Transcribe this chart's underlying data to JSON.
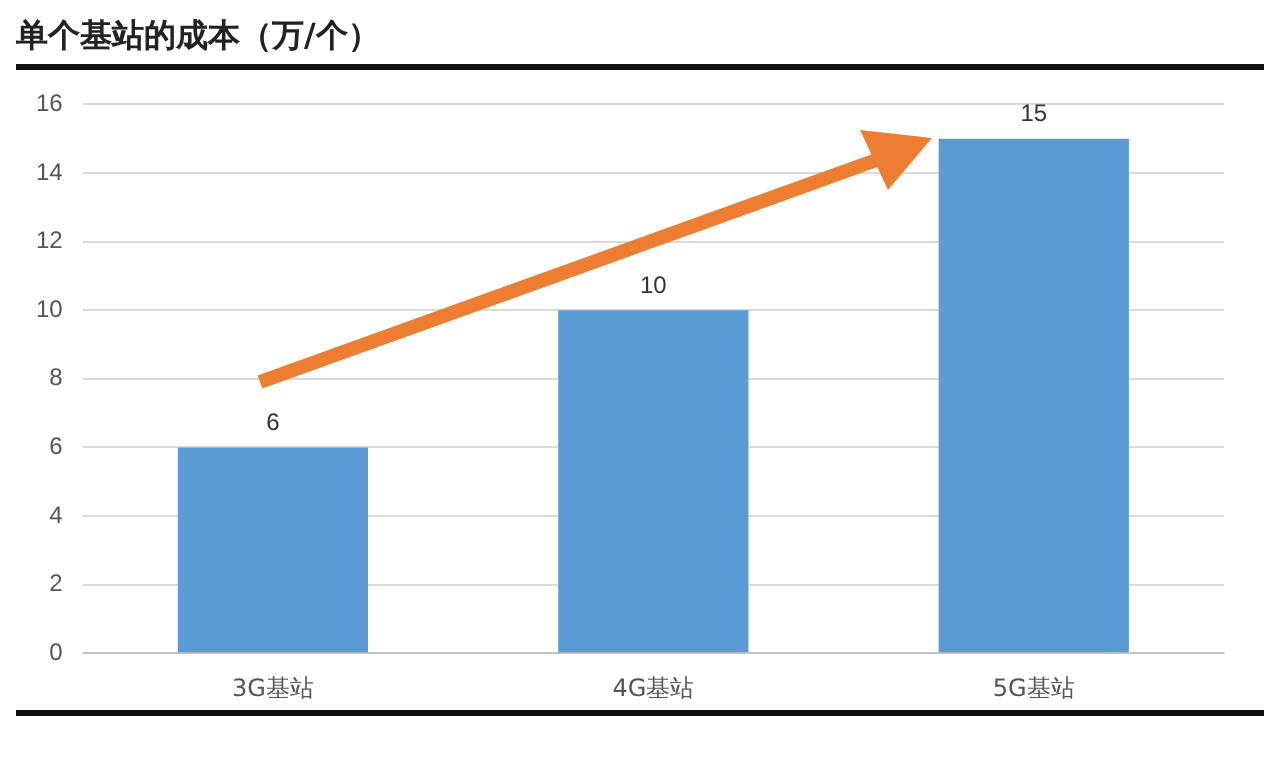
{
  "chart_data": {
    "type": "bar",
    "title": "单个基站的成本（万/个）",
    "categories": [
      "3G基站",
      "4G基站",
      "5G基站"
    ],
    "values": [
      6,
      10,
      15
    ],
    "color": "#5b9bd5",
    "ylim": [
      0,
      16
    ],
    "yticks": [
      0,
      2,
      4,
      6,
      8,
      10,
      12,
      14,
      16
    ],
    "grid": "y",
    "data_labels": true
  }
}
